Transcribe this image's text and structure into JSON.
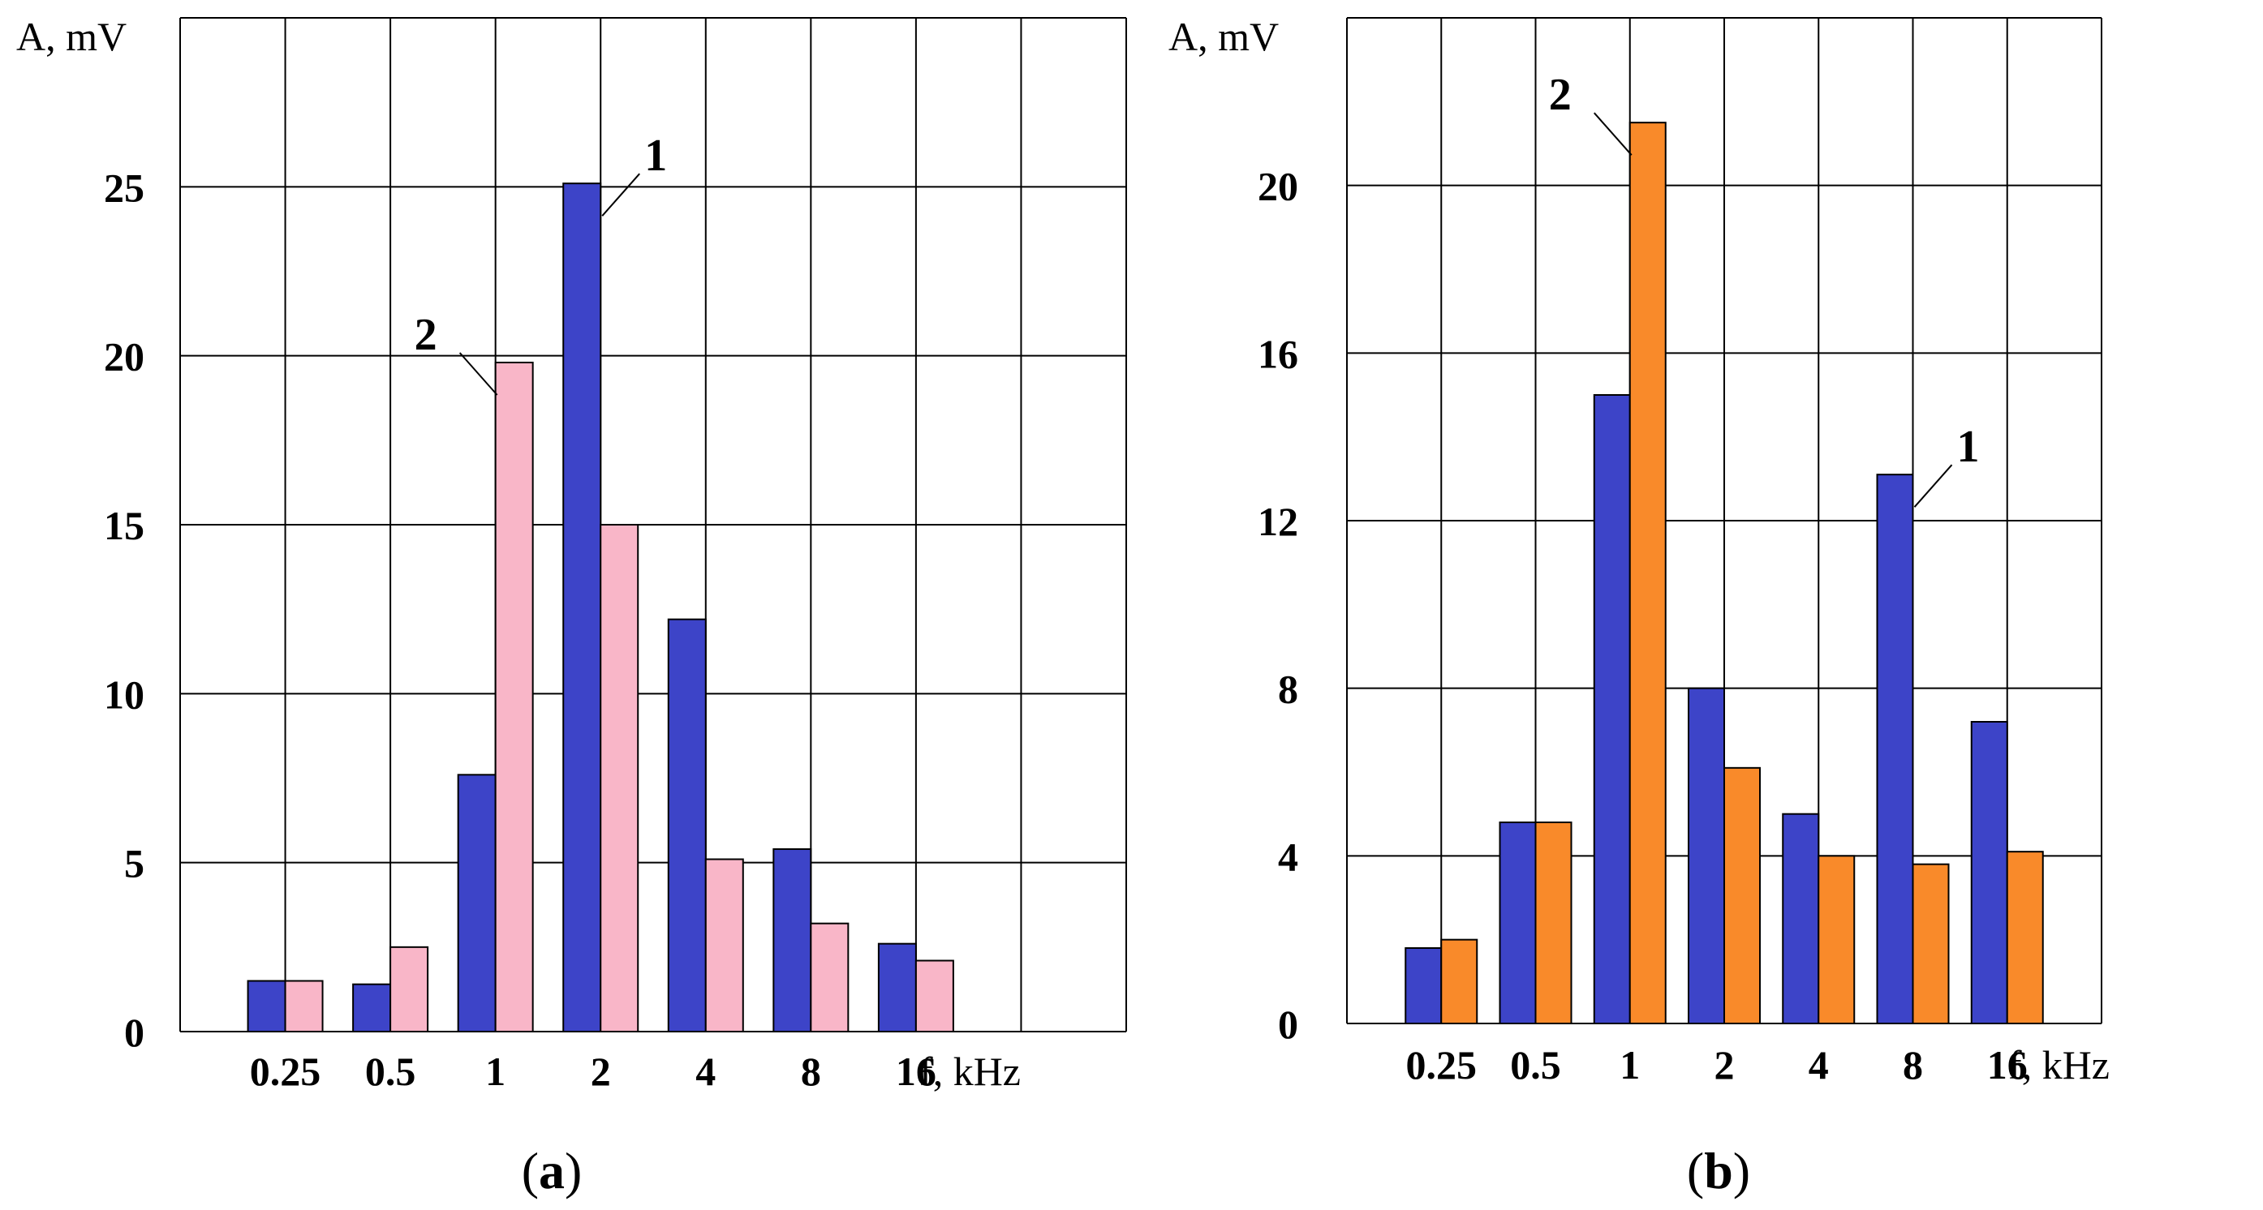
{
  "chart_data": [
    {
      "type": "bar",
      "panel_label": "a",
      "ylabel": "A, mV",
      "xlabel": "f, kHz",
      "ylim": [
        0,
        30
      ],
      "yticks": [
        0,
        5,
        10,
        15,
        20,
        25
      ],
      "ytick_labels": [
        "0",
        "5",
        "10",
        "15",
        "20",
        "25"
      ],
      "categories": [
        "0.25",
        "0.5",
        "1",
        "2",
        "4",
        "8",
        "16"
      ],
      "grid": true,
      "series": [
        {
          "name": "1",
          "color": "#3d44c8",
          "values": [
            1.5,
            1.4,
            7.6,
            25.1,
            12.2,
            5.4,
            2.6
          ]
        },
        {
          "name": "2",
          "color": "#f9b6c8",
          "values": [
            1.5,
            2.5,
            19.8,
            15.0,
            5.1,
            3.2,
            2.1
          ]
        }
      ],
      "annotations": [
        {
          "text": "1",
          "series": 0,
          "category": 3
        },
        {
          "text": "2",
          "series": 1,
          "category": 2
        }
      ]
    },
    {
      "type": "bar",
      "panel_label": "b",
      "ylabel": "A, mV",
      "xlabel": "f, kHz",
      "ylim": [
        0,
        24
      ],
      "yticks": [
        0,
        4,
        8,
        12,
        16,
        20
      ],
      "ytick_labels": [
        "0",
        "4",
        "8",
        "12",
        "16",
        "20"
      ],
      "categories": [
        "0.25",
        "0.5",
        "1",
        "2",
        "4",
        "8",
        "16"
      ],
      "grid": true,
      "series": [
        {
          "name": "1",
          "color": "#3d44c8",
          "values": [
            1.8,
            4.8,
            15.0,
            8.0,
            5.0,
            13.1,
            7.2
          ]
        },
        {
          "name": "2",
          "color": "#f98a2a",
          "values": [
            2.0,
            4.8,
            21.5,
            6.1,
            4.0,
            3.8,
            4.1
          ]
        }
      ],
      "annotations": [
        {
          "text": "1",
          "series": 0,
          "category": 5
        },
        {
          "text": "2",
          "series": 1,
          "category": 2
        }
      ]
    }
  ],
  "captions": {
    "open": "(",
    "close": ")"
  }
}
